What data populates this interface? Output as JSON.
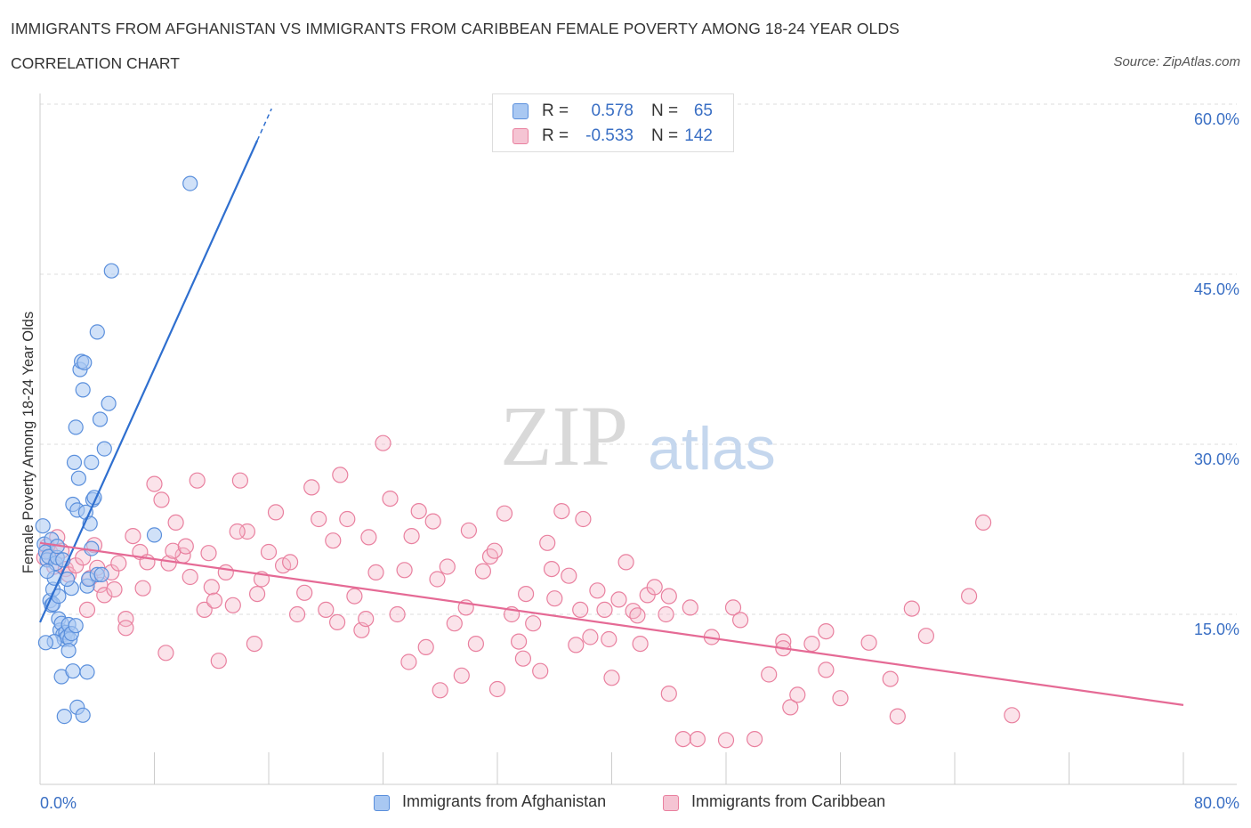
{
  "header": {
    "title": "IMMIGRANTS FROM AFGHANISTAN VS IMMIGRANTS FROM CARIBBEAN FEMALE POVERTY AMONG 18-24 YEAR OLDS",
    "subtitle": "CORRELATION CHART",
    "source": "Source: ZipAtlas.com"
  },
  "legend_stats": [
    {
      "r_label": "R =",
      "r_value": "0.578",
      "n_label": "N =",
      "n_value": "65"
    },
    {
      "r_label": "R =",
      "r_value": "-0.533",
      "n_label": "N =",
      "n_value": "142"
    }
  ],
  "colors": {
    "blue_fill": "#a9c8f2",
    "blue_stroke": "#5a8fdc",
    "blue_line": "#2f6fcf",
    "pink_fill": "#f5b8cb",
    "pink_stroke": "#e9809f",
    "pink_line": "#e56a95",
    "axis_label": "#3a6fc4",
    "grid": "#dddddd"
  },
  "watermark": {
    "zip": "ZIP",
    "atlas": "atlas"
  },
  "chart_data": {
    "type": "scatter",
    "title": "IMMIGRANTS FROM AFGHANISTAN VS IMMIGRANTS FROM CARIBBEAN FEMALE POVERTY AMONG 18-24 YEAR OLDS",
    "xlabel": "",
    "ylabel": "Female Poverty Among 18-24 Year Olds",
    "xlim": [
      0,
      80
    ],
    "ylim": [
      0,
      60
    ],
    "x_tick_labels": [
      {
        "value": 0,
        "label": "0.0%"
      },
      {
        "value": 80,
        "label": "80.0%"
      }
    ],
    "y_tick_labels": [
      {
        "value": 15,
        "label": "15.0%"
      },
      {
        "value": 30,
        "label": "30.0%"
      },
      {
        "value": 45,
        "label": "45.0%"
      },
      {
        "value": 60,
        "label": "60.0%"
      }
    ],
    "series": [
      {
        "name": "Immigrants from Afghanistan",
        "color": "blue",
        "R": 0.578,
        "N": 65,
        "trend": {
          "x0": 0,
          "y0": 14.3,
          "x1": 15.2,
          "y1": 56.8,
          "dash_x1": 16.2,
          "dash_y1": 59.6
        },
        "points": [
          [
            0.2,
            22.8
          ],
          [
            0.3,
            21.2
          ],
          [
            0.4,
            20.5
          ],
          [
            0.5,
            19.8
          ],
          [
            0.6,
            20.1
          ],
          [
            0.7,
            16.2
          ],
          [
            0.8,
            15.8
          ],
          [
            0.9,
            17.2
          ],
          [
            1.0,
            18.2
          ],
          [
            1.1,
            19.5
          ],
          [
            1.2,
            20.0
          ],
          [
            1.3,
            14.6
          ],
          [
            1.4,
            13.6
          ],
          [
            1.5,
            14.2
          ],
          [
            1.6,
            13.2
          ],
          [
            1.7,
            12.8
          ],
          [
            1.8,
            13.4
          ],
          [
            1.9,
            13.0
          ],
          [
            2.0,
            14.1
          ],
          [
            2.1,
            12.8
          ],
          [
            2.2,
            17.3
          ],
          [
            2.3,
            24.7
          ],
          [
            2.4,
            28.4
          ],
          [
            2.5,
            31.5
          ],
          [
            2.6,
            24.2
          ],
          [
            2.7,
            27.0
          ],
          [
            2.8,
            36.6
          ],
          [
            2.9,
            37.3
          ],
          [
            3.0,
            34.8
          ],
          [
            3.1,
            37.2
          ],
          [
            3.2,
            24.0
          ],
          [
            3.3,
            17.5
          ],
          [
            3.4,
            18.1
          ],
          [
            3.5,
            23.0
          ],
          [
            3.6,
            28.4
          ],
          [
            3.7,
            25.1
          ],
          [
            3.8,
            25.3
          ],
          [
            4.0,
            39.9
          ],
          [
            4.2,
            32.2
          ],
          [
            4.5,
            29.6
          ],
          [
            4.8,
            33.6
          ],
          [
            5.0,
            45.3
          ],
          [
            1.0,
            12.6
          ],
          [
            1.5,
            9.5
          ],
          [
            1.7,
            6.0
          ],
          [
            2.0,
            11.8
          ],
          [
            2.3,
            10.0
          ],
          [
            2.6,
            6.8
          ],
          [
            3.0,
            6.1
          ],
          [
            3.3,
            9.9
          ],
          [
            3.6,
            20.8
          ],
          [
            4.0,
            18.5
          ],
          [
            0.5,
            18.8
          ],
          [
            0.8,
            21.6
          ],
          [
            1.2,
            21.0
          ],
          [
            1.6,
            19.8
          ],
          [
            1.9,
            18.1
          ],
          [
            2.2,
            13.3
          ],
          [
            2.5,
            14.0
          ],
          [
            0.9,
            15.9
          ],
          [
            1.3,
            16.6
          ],
          [
            10.5,
            53.0
          ],
          [
            8.0,
            22.0
          ],
          [
            4.3,
            18.5
          ],
          [
            0.4,
            12.5
          ]
        ]
      },
      {
        "name": "Immigrants from Caribbean",
        "color": "pink",
        "R": -0.533,
        "N": 142,
        "trend": {
          "x0": 0,
          "y0": 21.3,
          "x1": 80,
          "y1": 7.0
        },
        "points": [
          [
            0.3,
            20.0
          ],
          [
            0.5,
            21.0
          ],
          [
            0.7,
            20.5
          ],
          [
            1.0,
            19.2
          ],
          [
            1.2,
            21.8
          ],
          [
            1.5,
            20.6
          ],
          [
            1.8,
            19.0
          ],
          [
            2.0,
            18.5
          ],
          [
            2.5,
            19.3
          ],
          [
            3.0,
            20.0
          ],
          [
            3.3,
            15.4
          ],
          [
            3.5,
            18.2
          ],
          [
            3.8,
            21.1
          ],
          [
            4.0,
            19.1
          ],
          [
            4.2,
            17.6
          ],
          [
            4.5,
            16.7
          ],
          [
            5.0,
            18.7
          ],
          [
            5.5,
            19.5
          ],
          [
            6.0,
            14.6
          ],
          [
            6.5,
            21.9
          ],
          [
            7.0,
            20.5
          ],
          [
            7.5,
            19.6
          ],
          [
            8.0,
            26.5
          ],
          [
            8.5,
            25.1
          ],
          [
            9.0,
            19.5
          ],
          [
            9.5,
            23.1
          ],
          [
            10.0,
            20.2
          ],
          [
            10.5,
            18.3
          ],
          [
            11.0,
            26.8
          ],
          [
            11.5,
            15.4
          ],
          [
            12.0,
            17.4
          ],
          [
            12.5,
            10.9
          ],
          [
            13.0,
            18.7
          ],
          [
            13.5,
            15.8
          ],
          [
            14.0,
            26.8
          ],
          [
            14.5,
            22.3
          ],
          [
            15.0,
            12.4
          ],
          [
            15.5,
            18.1
          ],
          [
            16.0,
            20.5
          ],
          [
            16.5,
            24.0
          ],
          [
            17.0,
            19.3
          ],
          [
            17.5,
            19.6
          ],
          [
            18.0,
            15.0
          ],
          [
            18.5,
            16.9
          ],
          [
            19.0,
            26.2
          ],
          [
            19.5,
            23.4
          ],
          [
            20.0,
            15.4
          ],
          [
            20.5,
            21.5
          ],
          [
            21.0,
            27.3
          ],
          [
            21.5,
            23.4
          ],
          [
            22.0,
            16.6
          ],
          [
            22.5,
            13.6
          ],
          [
            23.0,
            21.8
          ],
          [
            23.5,
            18.7
          ],
          [
            24.0,
            30.1
          ],
          [
            24.5,
            25.2
          ],
          [
            25.0,
            15.0
          ],
          [
            25.5,
            18.9
          ],
          [
            26.0,
            21.9
          ],
          [
            26.5,
            24.1
          ],
          [
            27.0,
            12.1
          ],
          [
            27.5,
            23.2
          ],
          [
            28.0,
            8.3
          ],
          [
            28.5,
            19.2
          ],
          [
            29.0,
            14.2
          ],
          [
            29.5,
            9.6
          ],
          [
            30.0,
            22.4
          ],
          [
            30.5,
            12.4
          ],
          [
            31.0,
            18.8
          ],
          [
            31.5,
            20.1
          ],
          [
            32.0,
            8.4
          ],
          [
            32.5,
            23.9
          ],
          [
            33.0,
            15.0
          ],
          [
            33.5,
            12.6
          ],
          [
            34.0,
            16.8
          ],
          [
            34.5,
            14.2
          ],
          [
            35.0,
            10.0
          ],
          [
            35.5,
            21.3
          ],
          [
            36.0,
            16.4
          ],
          [
            36.5,
            24.1
          ],
          [
            37.0,
            18.4
          ],
          [
            37.5,
            12.3
          ],
          [
            38.0,
            23.4
          ],
          [
            38.5,
            13.0
          ],
          [
            39.0,
            17.1
          ],
          [
            39.5,
            15.4
          ],
          [
            40.0,
            9.4
          ],
          [
            40.5,
            16.3
          ],
          [
            41.0,
            19.6
          ],
          [
            41.5,
            15.3
          ],
          [
            42.0,
            12.4
          ],
          [
            42.5,
            16.7
          ],
          [
            43.0,
            17.4
          ],
          [
            44.0,
            16.6
          ],
          [
            45.0,
            4.0
          ],
          [
            45.5,
            15.6
          ],
          [
            46.0,
            4.0
          ],
          [
            47.0,
            13.0
          ],
          [
            48.0,
            3.9
          ],
          [
            48.5,
            15.6
          ],
          [
            49.0,
            14.5
          ],
          [
            50.0,
            4.0
          ],
          [
            51.0,
            9.7
          ],
          [
            52.0,
            12.6
          ],
          [
            52.5,
            6.8
          ],
          [
            53.0,
            7.9
          ],
          [
            54.0,
            12.4
          ],
          [
            55.0,
            10.1
          ],
          [
            56.0,
            7.6
          ],
          [
            58.0,
            12.5
          ],
          [
            59.5,
            9.3
          ],
          [
            60.0,
            6.0
          ],
          [
            61.0,
            15.5
          ],
          [
            62.0,
            13.1
          ],
          [
            65.0,
            16.6
          ],
          [
            66.0,
            23.1
          ],
          [
            68.0,
            6.1
          ],
          [
            44.0,
            8.0
          ],
          [
            52.0,
            12.0
          ],
          [
            55.0,
            13.5
          ],
          [
            6.0,
            13.8
          ],
          [
            5.2,
            17.2
          ],
          [
            7.2,
            17.3
          ],
          [
            9.3,
            20.6
          ],
          [
            11.8,
            20.4
          ],
          [
            13.8,
            22.3
          ],
          [
            15.2,
            16.8
          ],
          [
            20.8,
            14.3
          ],
          [
            22.8,
            14.6
          ],
          [
            25.8,
            10.8
          ],
          [
            27.8,
            18.1
          ],
          [
            29.8,
            15.6
          ],
          [
            31.8,
            20.6
          ],
          [
            33.8,
            11.1
          ],
          [
            35.8,
            19.0
          ],
          [
            37.8,
            15.4
          ],
          [
            39.8,
            12.8
          ],
          [
            41.8,
            14.9
          ],
          [
            43.8,
            15.0
          ],
          [
            8.8,
            11.6
          ],
          [
            10.2,
            21.0
          ],
          [
            12.2,
            16.2
          ]
        ]
      }
    ]
  },
  "legend": {
    "items": [
      {
        "label": "Immigrants from Afghanistan"
      },
      {
        "label": "Immigrants from Caribbean"
      }
    ]
  }
}
